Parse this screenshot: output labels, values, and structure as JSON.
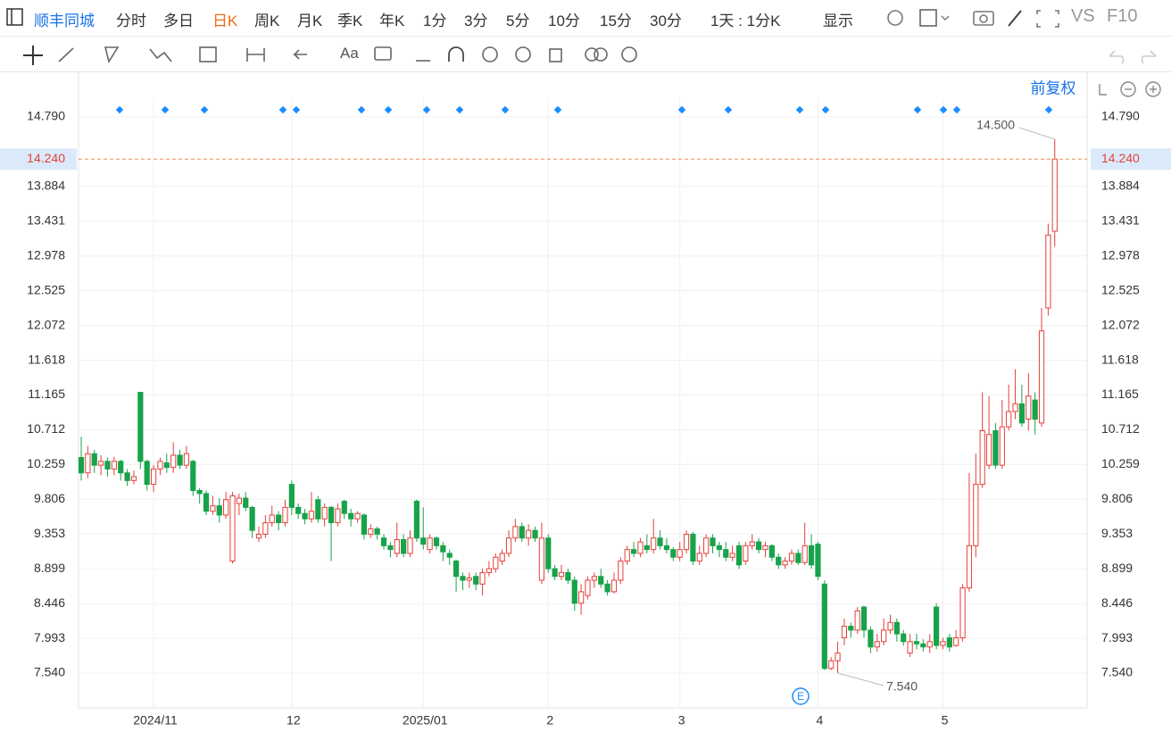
{
  "ui": {
    "toolbar": {
      "name": "顺丰同城",
      "periods": [
        "分时",
        "多日",
        "日K",
        "周K",
        "月K",
        "季K",
        "年K",
        "1分",
        "3分",
        "5分",
        "10分",
        "15分",
        "30分"
      ],
      "active_period": 2,
      "range": "1天 : 1分K",
      "display": "显示",
      "vs": "VS",
      "f10": "F10"
    },
    "tools": {
      "text_tool": "Aa"
    },
    "adjust": "前复权",
    "event_marker": "E"
  },
  "chart_data": {
    "type": "candlestick",
    "up_color": "#e5403a",
    "down_color": "#17a34a",
    "ylim": [
      7.086,
      15.151
    ],
    "yticks": [
      {
        "value": 7.54,
        "label": "7.540"
      },
      {
        "value": 7.993,
        "label": "7.993"
      },
      {
        "value": 8.446,
        "label": "8.446"
      },
      {
        "value": 8.899,
        "label": "8.899"
      },
      {
        "value": 9.353,
        "label": "9.353"
      },
      {
        "value": 9.806,
        "label": "9.806"
      },
      {
        "value": 10.259,
        "label": "10.259"
      },
      {
        "value": 10.712,
        "label": "10.712"
      },
      {
        "value": 11.165,
        "label": "11.165"
      },
      {
        "value": 11.618,
        "label": "11.618"
      },
      {
        "value": 12.072,
        "label": "12.072"
      },
      {
        "value": 12.525,
        "label": "12.525"
      },
      {
        "value": 12.978,
        "label": "12.978"
      },
      {
        "value": 13.431,
        "label": "13.431"
      },
      {
        "value": 13.884,
        "label": "13.884"
      },
      {
        "value": 14.79,
        "label": "14.790"
      }
    ],
    "grid": true,
    "current_price": {
      "value": 14.24,
      "label": "14.240"
    },
    "max_marker": {
      "value": 14.5,
      "label": "14.500"
    },
    "min_marker": {
      "value": 7.54,
      "label": "7.540"
    },
    "categories": [
      null,
      null,
      null,
      null,
      null,
      null,
      null,
      null,
      null,
      null,
      null,
      "2024/11",
      null,
      null,
      null,
      null,
      null,
      null,
      null,
      null,
      null,
      null,
      null,
      null,
      null,
      null,
      null,
      null,
      null,
      null,
      null,
      null,
      "12",
      null,
      null,
      null,
      null,
      null,
      null,
      null,
      null,
      null,
      null,
      null,
      null,
      null,
      null,
      null,
      null,
      null,
      null,
      null,
      "2025/01",
      null,
      null,
      null,
      null,
      null,
      null,
      null,
      null,
      null,
      null,
      null,
      null,
      null,
      null,
      null,
      null,
      null,
      null,
      "2",
      null,
      null,
      null,
      null,
      null,
      null,
      null,
      null,
      null,
      null,
      null,
      null,
      null,
      null,
      null,
      null,
      null,
      null,
      null,
      "3",
      null,
      null,
      null,
      null,
      null,
      null,
      null,
      null,
      null,
      null,
      null,
      null,
      null,
      null,
      null,
      null,
      null,
      null,
      null,
      null,
      "4",
      null,
      null,
      null,
      null,
      null,
      null,
      null,
      null,
      null,
      null,
      null,
      null,
      null,
      null,
      null,
      null,
      null,
      null,
      "5",
      null,
      null,
      null,
      null,
      null,
      null,
      null,
      null,
      null,
      null,
      null,
      null,
      null,
      null,
      null,
      null,
      null
    ],
    "open": [
      10.35,
      10.15,
      10.4,
      10.25,
      10.3,
      10.2,
      10.3,
      10.15,
      10.05,
      11.2,
      10.3,
      10.0,
      10.2,
      10.28,
      10.22,
      10.38,
      10.25,
      10.3,
      9.92,
      9.88,
      9.65,
      9.72,
      9.6,
      9.0,
      9.75,
      9.82,
      9.7,
      9.3,
      9.35,
      9.5,
      9.6,
      9.5,
      10.0,
      9.7,
      9.62,
      9.55,
      9.8,
      9.55,
      9.7,
      9.5,
      9.78,
      9.62,
      9.55,
      9.6,
      9.35,
      9.42,
      9.3,
      9.2,
      9.1,
      9.28,
      9.1,
      9.78,
      9.3,
      9.15,
      9.3,
      9.2,
      9.1,
      9.0,
      8.8,
      8.75,
      8.8,
      8.7,
      8.85,
      8.9,
      9.0,
      9.1,
      9.3,
      9.45,
      9.3,
      9.4,
      8.75,
      9.3,
      8.9,
      8.8,
      8.85,
      8.75,
      8.45,
      8.55,
      8.75,
      8.8,
      8.7,
      8.6,
      8.75,
      9.0,
      9.15,
      9.1,
      9.2,
      9.15,
      9.3,
      9.2,
      9.15,
      9.05,
      9.15,
      9.35,
      9.0,
      9.1,
      9.3,
      9.2,
      9.15,
      9.05,
      9.2,
      9.0,
      9.2,
      9.25,
      9.15,
      9.2,
      9.05,
      8.95,
      9.0,
      9.1,
      8.98,
      9.2,
      9.22,
      8.7,
      7.6,
      7.7,
      8.0,
      8.15,
      8.1,
      8.4,
      8.1,
      7.88,
      7.95,
      8.1,
      8.2,
      8.05,
      7.8,
      7.95,
      7.92,
      7.88,
      8.4,
      7.9,
      8.0,
      7.9,
      8.0,
      8.65,
      9.2,
      10.0,
      10.25,
      10.7,
      10.25,
      10.75,
      10.95,
      11.05,
      10.85,
      11.1,
      10.8,
      12.3,
      13.3
    ],
    "high": [
      10.62,
      10.5,
      10.45,
      10.38,
      10.35,
      10.36,
      10.32,
      10.2,
      10.18,
      11.2,
      10.32,
      10.25,
      10.35,
      10.4,
      10.55,
      10.45,
      10.5,
      10.32,
      9.95,
      9.92,
      9.85,
      9.82,
      9.9,
      9.9,
      9.88,
      9.9,
      9.72,
      9.45,
      9.6,
      9.72,
      9.65,
      9.8,
      10.05,
      9.75,
      9.68,
      9.9,
      9.85,
      9.75,
      9.72,
      9.75,
      9.8,
      9.68,
      9.65,
      9.62,
      9.48,
      9.45,
      9.35,
      9.25,
      9.5,
      9.35,
      9.4,
      9.8,
      9.7,
      9.35,
      9.32,
      9.25,
      9.15,
      9.02,
      8.85,
      8.85,
      8.85,
      8.9,
      9.0,
      9.1,
      9.15,
      9.4,
      9.55,
      9.5,
      9.48,
      9.45,
      9.5,
      9.35,
      8.95,
      8.95,
      8.9,
      8.8,
      8.7,
      8.8,
      8.85,
      8.9,
      8.75,
      8.85,
      9.05,
      9.2,
      9.25,
      9.3,
      9.35,
      9.55,
      9.4,
      9.3,
      9.18,
      9.25,
      9.4,
      9.38,
      9.2,
      9.35,
      9.35,
      9.25,
      9.25,
      9.2,
      9.25,
      9.25,
      9.35,
      9.3,
      9.25,
      9.22,
      9.1,
      9.05,
      9.15,
      9.15,
      9.5,
      9.35,
      9.25,
      8.75,
      7.75,
      7.95,
      8.25,
      8.2,
      8.4,
      8.42,
      8.15,
      8.05,
      8.25,
      8.3,
      8.25,
      8.1,
      8.05,
      8.05,
      7.98,
      8.05,
      8.45,
      8.0,
      8.05,
      8.1,
      8.7,
      10.15,
      10.4,
      11.2,
      11.15,
      10.8,
      11.1,
      11.3,
      11.5,
      11.3,
      11.45,
      11.2,
      12.3,
      13.4,
      14.5
    ],
    "low": [
      10.05,
      10.08,
      10.15,
      10.12,
      10.1,
      10.12,
      10.05,
      9.98,
      10.0,
      10.2,
      9.92,
      9.9,
      10.12,
      10.15,
      10.15,
      10.2,
      10.2,
      9.85,
      9.75,
      9.6,
      9.6,
      9.5,
      9.55,
      8.97,
      9.6,
      9.65,
      9.3,
      9.25,
      9.3,
      9.45,
      9.4,
      9.45,
      9.6,
      9.55,
      9.48,
      9.5,
      9.5,
      9.45,
      9.0,
      9.45,
      9.55,
      9.45,
      9.5,
      9.28,
      9.3,
      9.28,
      9.15,
      9.05,
      9.05,
      9.05,
      9.05,
      9.25,
      9.15,
      9.1,
      9.15,
      9.0,
      8.95,
      8.6,
      8.62,
      8.65,
      8.62,
      8.55,
      8.8,
      8.85,
      8.95,
      9.05,
      9.25,
      9.25,
      9.2,
      9.25,
      8.7,
      8.85,
      8.75,
      8.75,
      8.7,
      8.35,
      8.3,
      8.5,
      8.65,
      8.65,
      8.55,
      8.58,
      8.7,
      8.95,
      9.05,
      9.05,
      9.1,
      9.1,
      9.15,
      9.1,
      9.0,
      9.0,
      9.1,
      8.95,
      8.95,
      9.05,
      9.1,
      9.05,
      9.0,
      9.0,
      8.9,
      8.95,
      9.15,
      9.1,
      9.05,
      9.0,
      8.9,
      8.9,
      8.95,
      8.95,
      8.95,
      8.9,
      8.75,
      7.58,
      7.58,
      7.54,
      7.9,
      8.0,
      8.05,
      8.0,
      7.8,
      7.82,
      7.9,
      8.05,
      7.95,
      7.9,
      7.75,
      7.85,
      7.82,
      7.8,
      7.85,
      7.85,
      7.82,
      7.88,
      7.95,
      8.6,
      9.05,
      9.95,
      10.2,
      10.2,
      10.2,
      10.7,
      10.85,
      10.75,
      10.7,
      10.65,
      10.75,
      12.2,
      13.1
    ],
    "close": [
      10.15,
      10.4,
      10.25,
      10.3,
      10.2,
      10.3,
      10.15,
      10.05,
      10.1,
      10.3,
      10.0,
      10.2,
      10.3,
      10.22,
      10.38,
      10.25,
      10.4,
      9.92,
      9.88,
      9.65,
      9.72,
      9.6,
      9.8,
      9.85,
      9.82,
      9.7,
      9.4,
      9.35,
      9.5,
      9.6,
      9.5,
      9.7,
      9.7,
      9.62,
      9.55,
      9.65,
      9.55,
      9.7,
      9.5,
      9.68,
      9.62,
      9.55,
      9.62,
      9.35,
      9.42,
      9.35,
      9.2,
      9.15,
      9.28,
      9.1,
      9.3,
      9.3,
      9.22,
      9.3,
      9.2,
      9.12,
      9.05,
      8.8,
      8.75,
      8.78,
      8.7,
      8.85,
      8.9,
      9.05,
      9.1,
      9.3,
      9.45,
      9.3,
      9.4,
      9.3,
      9.3,
      8.9,
      8.8,
      8.85,
      8.75,
      8.45,
      8.6,
      8.75,
      8.8,
      8.7,
      8.6,
      8.75,
      9.0,
      9.15,
      9.1,
      9.25,
      9.15,
      9.3,
      9.2,
      9.15,
      9.05,
      9.15,
      9.35,
      9.0,
      9.1,
      9.3,
      9.2,
      9.15,
      9.05,
      9.1,
      8.95,
      9.2,
      9.25,
      9.15,
      9.2,
      9.05,
      8.95,
      9.0,
      9.1,
      8.98,
      9.2,
      8.95,
      8.8,
      7.6,
      7.7,
      7.8,
      8.15,
      8.1,
      8.35,
      8.1,
      7.88,
      7.95,
      8.1,
      8.2,
      8.05,
      7.95,
      7.95,
      7.92,
      7.88,
      7.95,
      7.9,
      7.95,
      7.88,
      8.0,
      8.65,
      9.2,
      10.0,
      10.7,
      10.65,
      10.25,
      10.75,
      10.95,
      11.05,
      10.8,
      11.15,
      10.85,
      12.0,
      13.25,
      14.24
    ]
  }
}
